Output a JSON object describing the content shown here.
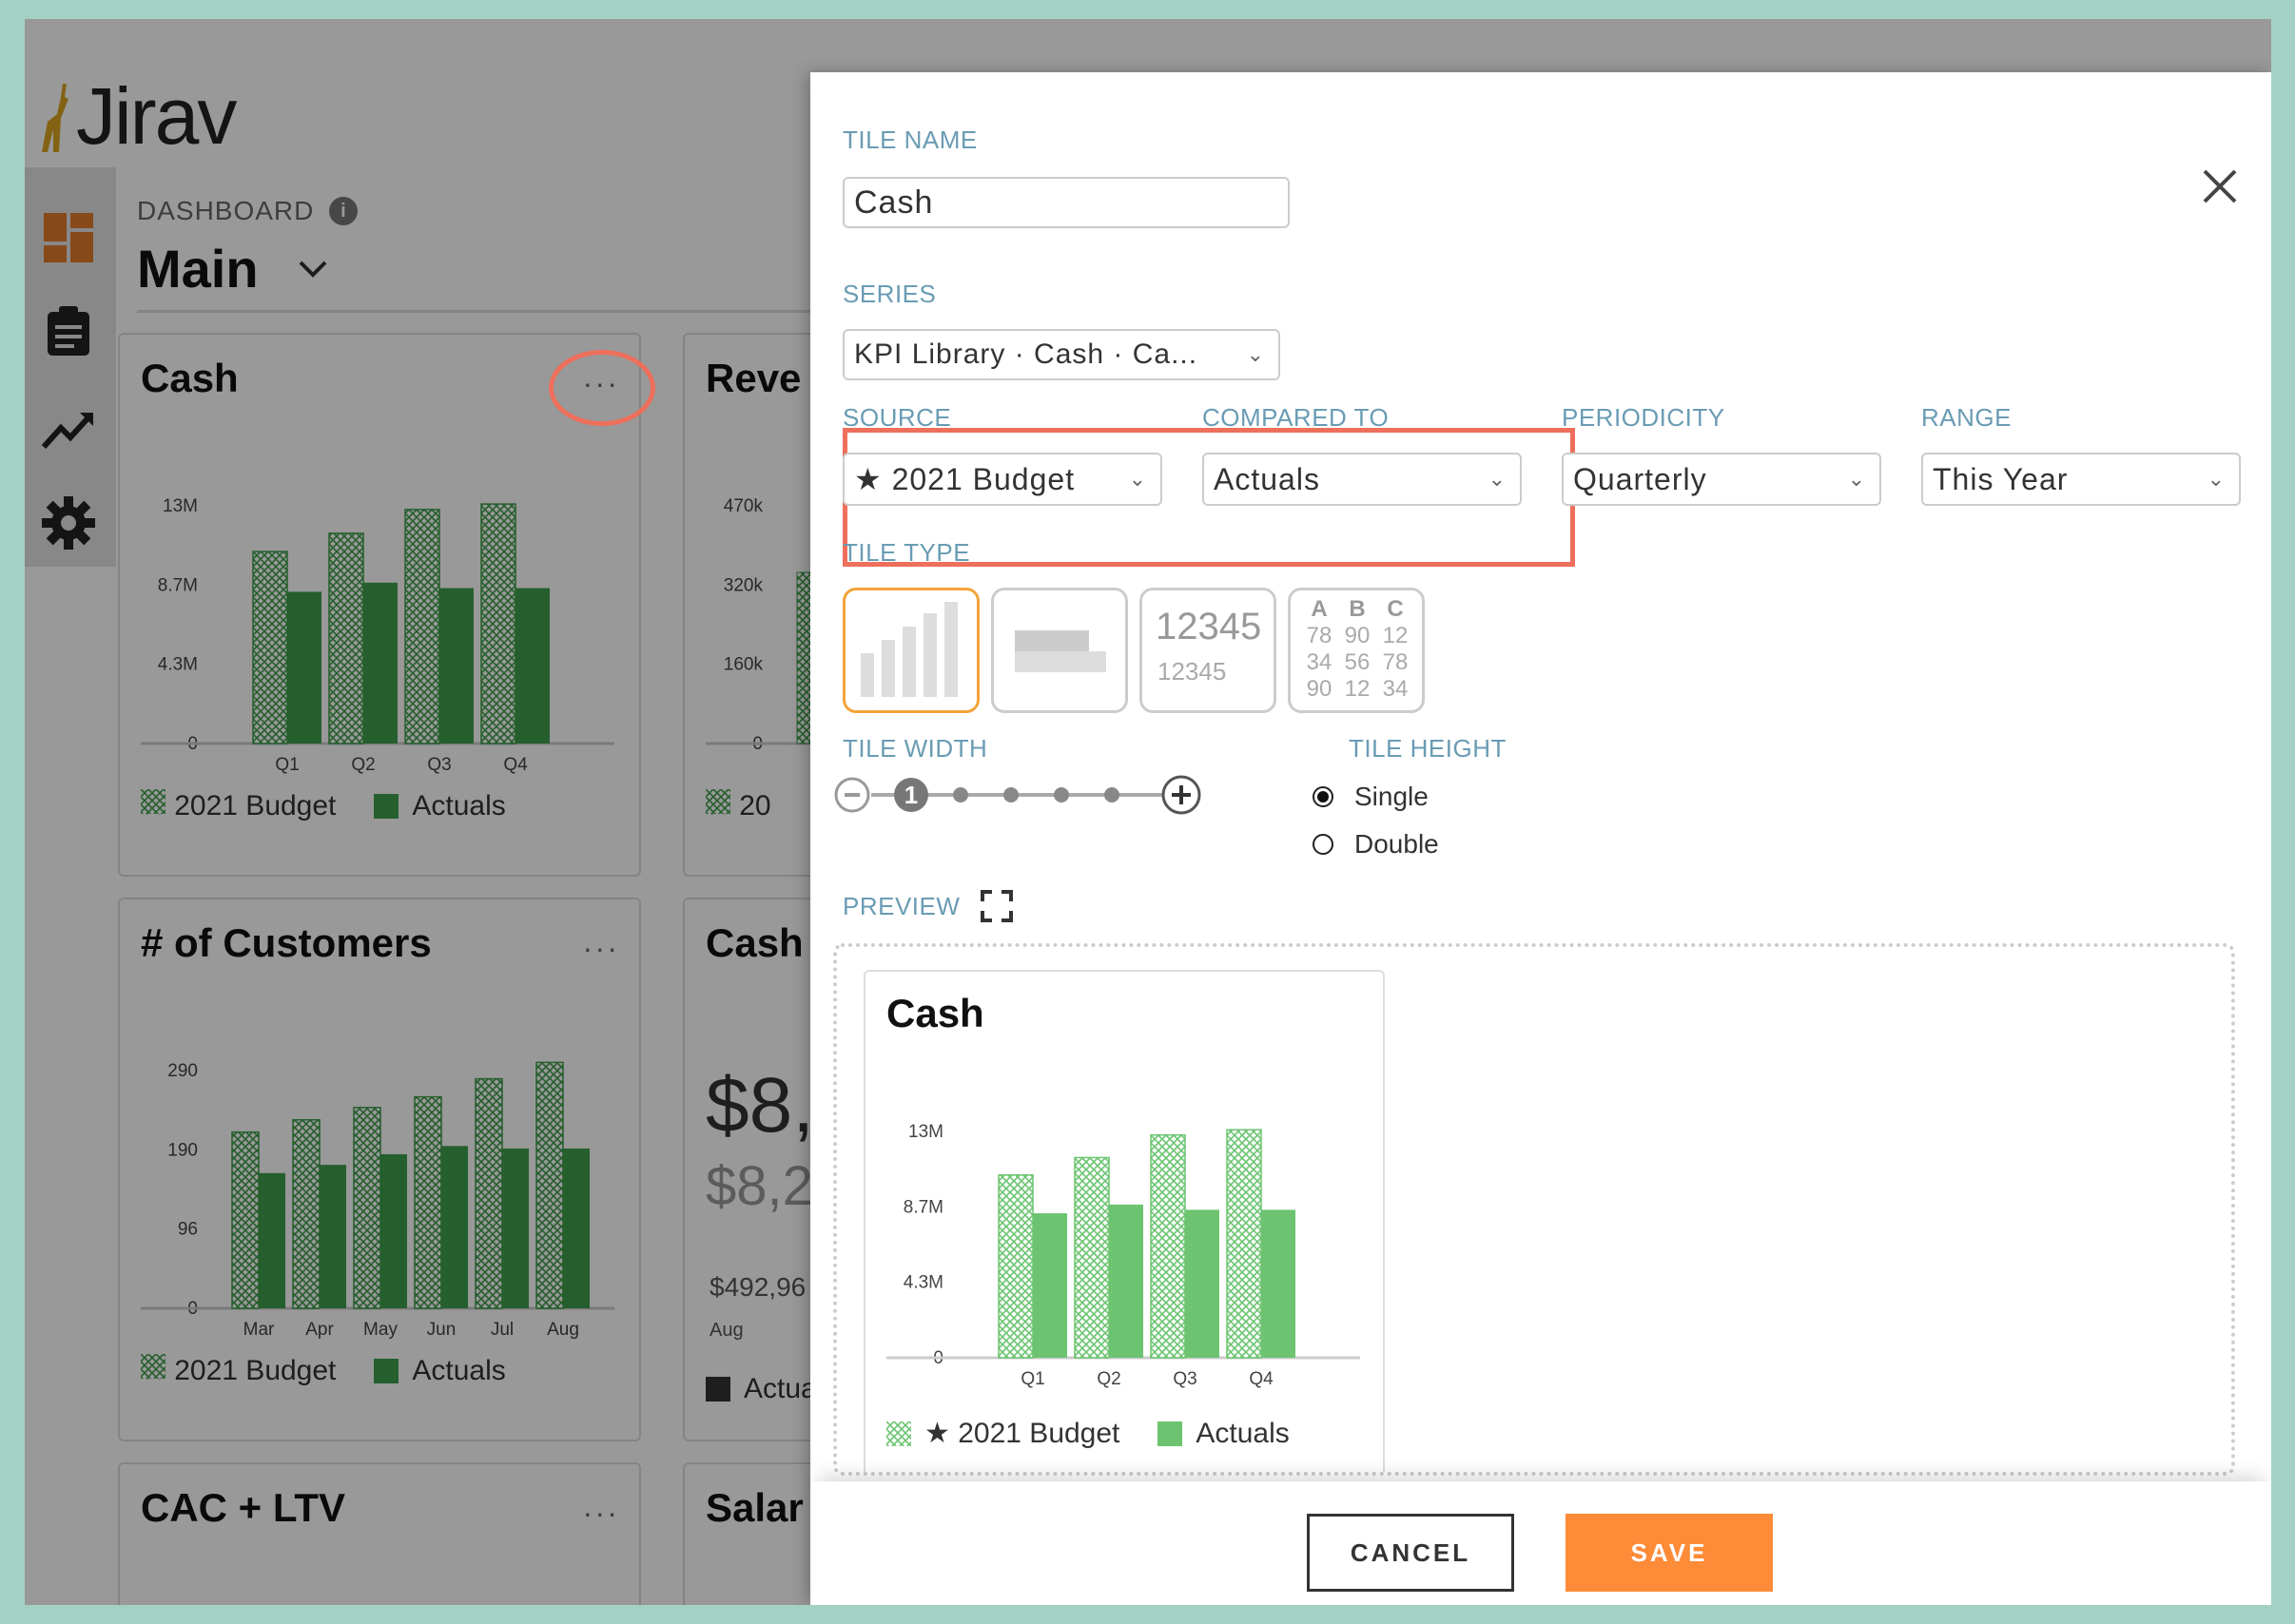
{
  "app": {
    "logo": "Jirav"
  },
  "dashboard": {
    "label": "DASHBOARD",
    "title": "Main",
    "cards": [
      {
        "title": "Cash",
        "more": "...",
        "legend": [
          "★ 2021 Budget",
          "Actuals"
        ]
      },
      {
        "title": "Reve",
        "legend_partial": "★ 20"
      },
      {
        "title": "# of Customers",
        "more": "...",
        "legend": [
          "★ 2021 Budget",
          "Actuals"
        ]
      },
      {
        "title": "Cash",
        "big_value": "$8,",
        "sub_value": "$8,2",
        "small_value": "$492,96",
        "month": "Aug",
        "legend_partial": "Actua"
      },
      {
        "title": "CAC + LTV",
        "more": "..."
      },
      {
        "title": "Salar"
      }
    ]
  },
  "modal": {
    "tile_name_label": "TILE NAME",
    "tile_name_value": "Cash",
    "series_label": "SERIES",
    "series_value": "KPI Library · Cash · Ca...",
    "source_label": "SOURCE",
    "source_value": "★ 2021 Budget",
    "compared_label": "COMPARED TO",
    "compared_value": "Actuals",
    "periodicity_label": "PERIODICITY",
    "periodicity_value": "Quarterly",
    "range_label": "RANGE",
    "range_value": "This Year",
    "tile_type_label": "TILE TYPE",
    "tile_types": {
      "number_big": "12345",
      "number_small": "12345",
      "table_head": [
        "A",
        "B",
        "C"
      ],
      "table_rows": [
        [
          "78",
          "90",
          "12"
        ],
        [
          "34",
          "56",
          "78"
        ],
        [
          "90",
          "12",
          "34"
        ]
      ]
    },
    "tile_width_label": "TILE WIDTH",
    "tile_width_value": "1",
    "tile_height_label": "TILE HEIGHT",
    "tile_height_options": [
      "Single",
      "Double"
    ],
    "preview_label": "PREVIEW",
    "preview_title": "Cash",
    "preview_legend": [
      "★ 2021 Budget",
      "Actuals"
    ],
    "cancel_label": "CANCEL",
    "save_label": "SAVE"
  },
  "colors": {
    "accent": "#fd8b38",
    "label": "#6a9cb4",
    "highlight": "#ee6f5b",
    "bar_dark": "#3f9e4b",
    "bar_light": "#6cc470"
  },
  "chart_data": [
    {
      "type": "bar",
      "chart": "cash-card",
      "categories": [
        "Q1",
        "Q2",
        "Q3",
        "Q4"
      ],
      "yticks": [
        "0",
        "4.3M",
        "8.7M",
        "13M"
      ],
      "ylim": [
        0,
        13
      ],
      "series": [
        {
          "name": "★ 2021 Budget",
          "values": [
            10.5,
            11.5,
            12.8,
            13.1
          ]
        },
        {
          "name": "Actuals",
          "values": [
            8.3,
            8.8,
            8.5,
            8.5
          ]
        }
      ]
    },
    {
      "type": "bar",
      "chart": "revenue-card",
      "yticks": [
        "0",
        "160k",
        "320k",
        "470k"
      ]
    },
    {
      "type": "bar",
      "chart": "customers-card",
      "categories": [
        "Mar",
        "Apr",
        "May",
        "Jun",
        "Jul",
        "Aug"
      ],
      "yticks": [
        "0",
        "96",
        "190",
        "290"
      ],
      "ylim": [
        0,
        290
      ],
      "series": [
        {
          "name": "★ 2021 Budget",
          "values": [
            215,
            230,
            245,
            258,
            280,
            300
          ]
        },
        {
          "name": "Actuals",
          "values": [
            165,
            175,
            188,
            198,
            195,
            195
          ]
        }
      ]
    },
    {
      "type": "bar",
      "chart": "preview",
      "categories": [
        "Q1",
        "Q2",
        "Q3",
        "Q4"
      ],
      "yticks": [
        "0",
        "4.3M",
        "8.7M",
        "13M"
      ],
      "ylim": [
        0,
        13
      ],
      "series": [
        {
          "name": "★ 2021 Budget",
          "values": [
            10.5,
            11.5,
            12.8,
            13.1
          ]
        },
        {
          "name": "Actuals",
          "values": [
            8.3,
            8.8,
            8.5,
            8.5
          ]
        }
      ]
    }
  ]
}
